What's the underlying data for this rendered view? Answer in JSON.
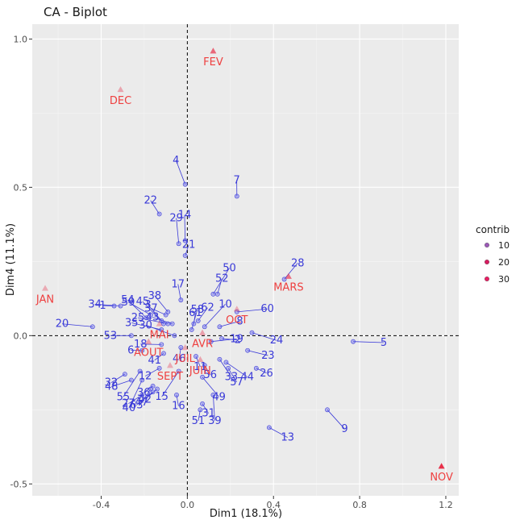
{
  "chart_data": {
    "type": "scatter",
    "title": "CA - Biplot",
    "xlabel": "Dim1 (18.1%)",
    "ylabel": "Dim4 (11.1%)",
    "xlim": [
      -0.72,
      1.26
    ],
    "ylim": [
      -0.54,
      1.05
    ],
    "x_ticks": [
      -0.4,
      0.0,
      0.4,
      0.8,
      1.2
    ],
    "x_tick_labels": [
      "-0.4",
      "0.0",
      "0.4",
      "0.8",
      "1.2"
    ],
    "y_ticks": [
      -0.5,
      0.0,
      0.5,
      1.0
    ],
    "y_tick_labels": [
      "-0.5",
      "0.0",
      "0.5",
      "1.0"
    ],
    "grid": true,
    "reference_lines": {
      "x": 0,
      "y": 0,
      "style": "dashed"
    },
    "legend": {
      "title": "contrib",
      "position": "right",
      "entries": [
        "10",
        "20",
        "30"
      ]
    },
    "colors": {
      "rows": "#3a3ad8",
      "cols": "#ee4040",
      "panel": "#ebebeb",
      "grid": "#ffffff"
    },
    "col_points": [
      {
        "name": "FEV",
        "x": 0.12,
        "y": 0.96,
        "contrib": 18
      },
      {
        "name": "DEC",
        "x": -0.31,
        "y": 0.83,
        "contrib": 5
      },
      {
        "name": "JAN",
        "x": -0.66,
        "y": 0.16,
        "contrib": 4
      },
      {
        "name": "MARS",
        "x": 0.47,
        "y": 0.2,
        "contrib": 16
      },
      {
        "name": "OCT",
        "x": 0.23,
        "y": 0.09,
        "contrib": 4
      },
      {
        "name": "MAI",
        "x": -0.13,
        "y": 0.04,
        "contrib": 4
      },
      {
        "name": "AVR",
        "x": 0.07,
        "y": 0.01,
        "contrib": 6
      },
      {
        "name": "AOUT",
        "x": -0.18,
        "y": -0.02,
        "contrib": 6
      },
      {
        "name": "JUIL",
        "x": -0.01,
        "y": -0.04,
        "contrib": 4
      },
      {
        "name": "JUIN",
        "x": 0.06,
        "y": -0.08,
        "contrib": 5
      },
      {
        "name": "SEPT",
        "x": -0.08,
        "y": -0.1,
        "contrib": 4
      },
      {
        "name": "NOV",
        "x": 1.18,
        "y": -0.44,
        "contrib": 30
      }
    ],
    "row_points": [
      {
        "name": "1",
        "x": -0.34,
        "y": 0.1
      },
      {
        "name": "2",
        "x": 0.16,
        "y": -0.01
      },
      {
        "name": "3",
        "x": -0.12,
        "y": 0.05
      },
      {
        "name": "4",
        "x": -0.01,
        "y": 0.51
      },
      {
        "name": "5",
        "x": 0.77,
        "y": -0.02
      },
      {
        "name": "6",
        "x": -0.21,
        "y": -0.05
      },
      {
        "name": "7",
        "x": 0.23,
        "y": 0.47
      },
      {
        "name": "8",
        "x": 0.15,
        "y": 0.03
      },
      {
        "name": "9",
        "x": 0.65,
        "y": -0.25
      },
      {
        "name": "10",
        "x": 0.08,
        "y": 0.03
      },
      {
        "name": "11",
        "x": 0.04,
        "y": -0.07
      },
      {
        "name": "12",
        "x": -0.13,
        "y": -0.11
      },
      {
        "name": "13",
        "x": 0.38,
        "y": -0.31
      },
      {
        "name": "14",
        "x": -0.01,
        "y": 0.32
      },
      {
        "name": "15",
        "x": -0.04,
        "y": -0.12
      },
      {
        "name": "16",
        "x": -0.05,
        "y": -0.2
      },
      {
        "name": "17",
        "x": -0.03,
        "y": 0.12
      },
      {
        "name": "18",
        "x": -0.12,
        "y": -0.03
      },
      {
        "name": "19",
        "x": 0.11,
        "y": -0.02
      },
      {
        "name": "20",
        "x": -0.44,
        "y": 0.03
      },
      {
        "name": "21",
        "x": -0.01,
        "y": 0.27
      },
      {
        "name": "22",
        "x": -0.13,
        "y": 0.41
      },
      {
        "name": "23",
        "x": 0.28,
        "y": -0.05
      },
      {
        "name": "24",
        "x": 0.3,
        "y": 0.01
      },
      {
        "name": "25",
        "x": -0.09,
        "y": 0.04
      },
      {
        "name": "26",
        "x": 0.32,
        "y": -0.11
      },
      {
        "name": "27",
        "x": -0.21,
        "y": -0.2
      },
      {
        "name": "28",
        "x": 0.45,
        "y": 0.19
      },
      {
        "name": "29",
        "x": -0.04,
        "y": 0.31
      },
      {
        "name": "30",
        "x": -0.06,
        "y": 0.0
      },
      {
        "name": "31",
        "x": 0.07,
        "y": -0.23
      },
      {
        "name": "32",
        "x": -0.29,
        "y": -0.13
      },
      {
        "name": "33",
        "x": 0.15,
        "y": -0.08
      },
      {
        "name": "34",
        "x": -0.31,
        "y": 0.1
      },
      {
        "name": "35",
        "x": -0.12,
        "y": 0.02
      },
      {
        "name": "36",
        "x": -0.16,
        "y": -0.17
      },
      {
        "name": "37",
        "x": -0.1,
        "y": 0.07
      },
      {
        "name": "38",
        "x": -0.09,
        "y": 0.08
      },
      {
        "name": "39",
        "x": 0.12,
        "y": -0.2
      },
      {
        "name": "40",
        "x": -0.21,
        "y": -0.15
      },
      {
        "name": "41",
        "x": -0.11,
        "y": -0.06
      },
      {
        "name": "42",
        "x": -0.14,
        "y": -0.18
      },
      {
        "name": "43",
        "x": -0.07,
        "y": 0.04
      },
      {
        "name": "44",
        "x": 0.18,
        "y": -0.09
      },
      {
        "name": "45",
        "x": -0.11,
        "y": 0.04
      },
      {
        "name": "46",
        "x": -0.03,
        "y": -0.04
      },
      {
        "name": "47",
        "x": -0.17,
        "y": -0.18
      },
      {
        "name": "48",
        "x": -0.26,
        "y": -0.15
      },
      {
        "name": "49",
        "x": 0.07,
        "y": -0.14
      },
      {
        "name": "50",
        "x": 0.12,
        "y": 0.14
      },
      {
        "name": "51",
        "x": 0.06,
        "y": -0.25
      },
      {
        "name": "52",
        "x": 0.14,
        "y": 0.14
      },
      {
        "name": "53",
        "x": -0.26,
        "y": 0.0
      },
      {
        "name": "54",
        "x": -0.19,
        "y": 0.06
      },
      {
        "name": "55",
        "x": -0.22,
        "y": -0.12
      },
      {
        "name": "56",
        "x": 0.08,
        "y": -0.1
      },
      {
        "name": "57",
        "x": 0.19,
        "y": -0.11
      },
      {
        "name": "58",
        "x": 0.02,
        "y": 0.02
      },
      {
        "name": "59",
        "x": -0.17,
        "y": 0.07
      },
      {
        "name": "60",
        "x": 0.23,
        "y": 0.08
      },
      {
        "name": "61",
        "x": 0.03,
        "y": 0.04
      },
      {
        "name": "62",
        "x": 0.05,
        "y": 0.05
      },
      {
        "name": "63",
        "x": -0.16,
        "y": -0.19
      }
    ]
  }
}
